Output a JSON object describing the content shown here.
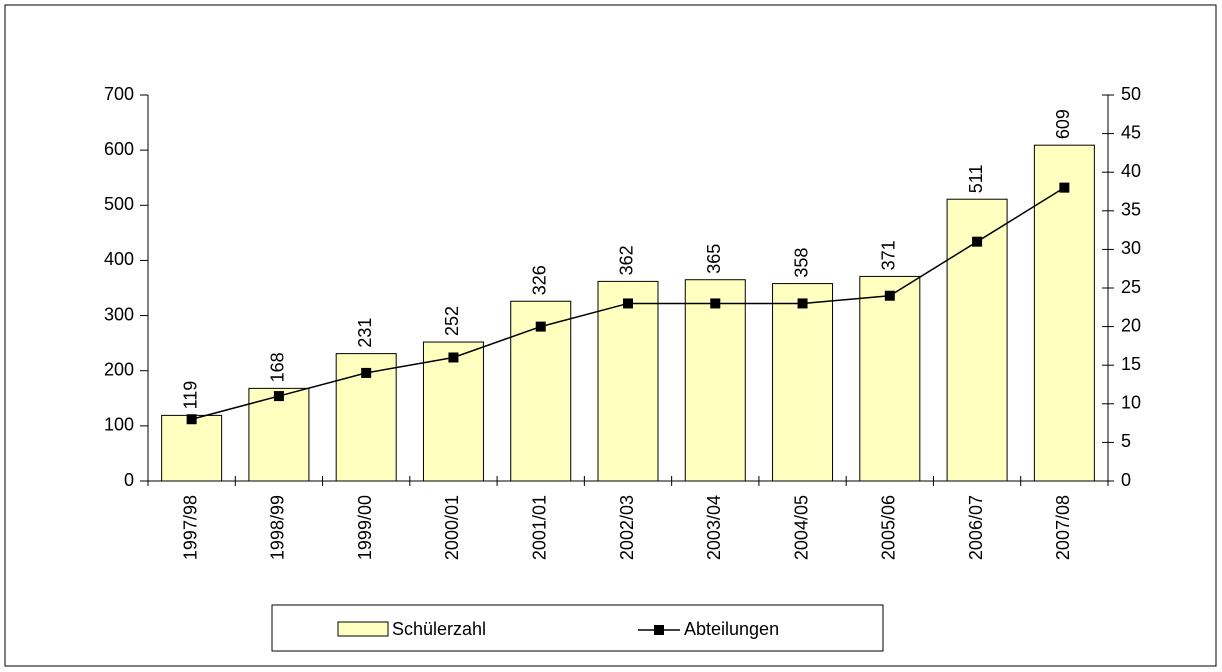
{
  "chart_data": {
    "type": "bar-line",
    "categories": [
      "1997/98",
      "1998/99",
      "1999/00",
      "2000/01",
      "2001/01",
      "2002/03",
      "2003/04",
      "2004/05",
      "2005/06",
      "2006/07",
      "2007/08"
    ],
    "series": [
      {
        "name": "Schülerzahl",
        "type": "bar",
        "color": "#ffffc0",
        "values": [
          119,
          168,
          231,
          252,
          326,
          362,
          365,
          358,
          371,
          511,
          609
        ]
      },
      {
        "name": "Abteilungen",
        "type": "line",
        "color": "#000000",
        "axis": "y2",
        "values": [
          8,
          11,
          14,
          16,
          20,
          23,
          23,
          23,
          24,
          31,
          38
        ]
      }
    ],
    "ylim": [
      0,
      700
    ],
    "yticks": [
      0,
      100,
      200,
      300,
      400,
      500,
      600,
      700
    ],
    "y2lim": [
      0,
      50
    ],
    "y2ticks": [
      0,
      5,
      10,
      15,
      20,
      25,
      30,
      35,
      40,
      45,
      50
    ],
    "legend": "bottom"
  }
}
